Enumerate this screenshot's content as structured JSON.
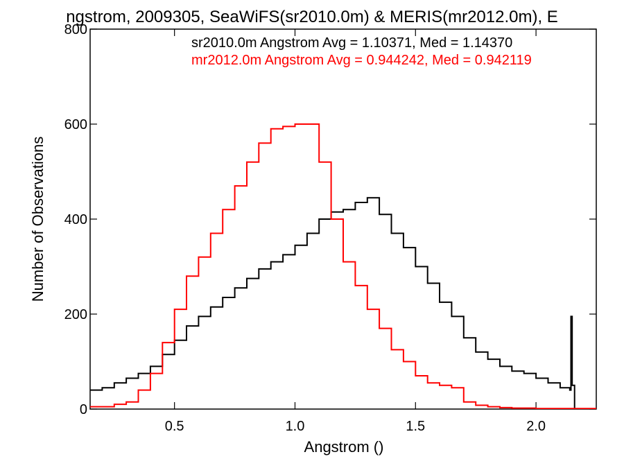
{
  "chart_data": {
    "type": "line",
    "title": "ngstrom, 2009305, SeaWiFS(sr2010.0m) & MERIS(mr2012.0m), E",
    "xlabel": "Angstrom ()",
    "ylabel": "Number of Observations",
    "xlim": [
      0.15,
      2.25
    ],
    "ylim": [
      0,
      800
    ],
    "x_ticks": [
      0.5,
      1.0,
      1.5,
      2.0
    ],
    "x_tick_labels": [
      "0.5",
      "1.0",
      "1.5",
      "2.0"
    ],
    "y_ticks": [
      0,
      200,
      400,
      600,
      800
    ],
    "y_tick_labels": [
      "0",
      "200",
      "400",
      "600",
      "800"
    ],
    "grid": false,
    "step": true,
    "annotations": [
      {
        "text": "sr2010.0m Angstrom Avg = 1.10371, Med = 1.14370",
        "color": "#000000"
      },
      {
        "text": "mr2012.0m Angstrom Avg = 0.944242, Med = 0.942119",
        "color": "#ff0000"
      }
    ],
    "series": [
      {
        "color": "#000000",
        "points": [
          [
            0.15,
            40
          ],
          [
            0.2,
            45
          ],
          [
            0.25,
            55
          ],
          [
            0.3,
            65
          ],
          [
            0.35,
            75
          ],
          [
            0.4,
            90
          ],
          [
            0.45,
            115
          ],
          [
            0.5,
            145
          ],
          [
            0.55,
            175
          ],
          [
            0.6,
            195
          ],
          [
            0.65,
            215
          ],
          [
            0.7,
            235
          ],
          [
            0.75,
            255
          ],
          [
            0.8,
            275
          ],
          [
            0.85,
            295
          ],
          [
            0.9,
            310
          ],
          [
            0.95,
            325
          ],
          [
            1.0,
            345
          ],
          [
            1.05,
            370
          ],
          [
            1.1,
            400
          ],
          [
            1.15,
            415
          ],
          [
            1.2,
            420
          ],
          [
            1.25,
            435
          ],
          [
            1.3,
            445
          ],
          [
            1.35,
            410
          ],
          [
            1.4,
            370
          ],
          [
            1.45,
            340
          ],
          [
            1.5,
            300
          ],
          [
            1.55,
            265
          ],
          [
            1.6,
            225
          ],
          [
            1.65,
            195
          ],
          [
            1.7,
            150
          ],
          [
            1.75,
            120
          ],
          [
            1.8,
            105
          ],
          [
            1.85,
            90
          ],
          [
            1.9,
            80
          ],
          [
            1.95,
            75
          ],
          [
            2.0,
            65
          ],
          [
            2.05,
            55
          ],
          [
            2.1,
            45
          ],
          [
            2.14,
            40
          ],
          [
            2.145,
            195
          ],
          [
            2.15,
            50
          ],
          [
            2.16,
            0
          ]
        ]
      },
      {
        "color": "#ff0000",
        "points": [
          [
            0.15,
            5
          ],
          [
            0.2,
            5
          ],
          [
            0.25,
            10
          ],
          [
            0.3,
            15
          ],
          [
            0.35,
            40
          ],
          [
            0.4,
            75
          ],
          [
            0.45,
            140
          ],
          [
            0.5,
            210
          ],
          [
            0.55,
            280
          ],
          [
            0.6,
            320
          ],
          [
            0.65,
            370
          ],
          [
            0.7,
            420
          ],
          [
            0.75,
            470
          ],
          [
            0.8,
            520
          ],
          [
            0.85,
            560
          ],
          [
            0.9,
            590
          ],
          [
            0.95,
            595
          ],
          [
            1.0,
            600
          ],
          [
            1.05,
            600
          ],
          [
            1.1,
            520
          ],
          [
            1.15,
            400
          ],
          [
            1.2,
            310
          ],
          [
            1.25,
            260
          ],
          [
            1.3,
            210
          ],
          [
            1.35,
            170
          ],
          [
            1.4,
            125
          ],
          [
            1.45,
            100
          ],
          [
            1.5,
            70
          ],
          [
            1.55,
            55
          ],
          [
            1.6,
            50
          ],
          [
            1.65,
            45
          ],
          [
            1.7,
            15
          ],
          [
            1.75,
            8
          ],
          [
            1.8,
            5
          ],
          [
            1.85,
            3
          ],
          [
            1.9,
            2
          ],
          [
            2.0,
            1
          ],
          [
            2.1,
            1
          ],
          [
            2.25,
            1
          ]
        ]
      }
    ]
  }
}
